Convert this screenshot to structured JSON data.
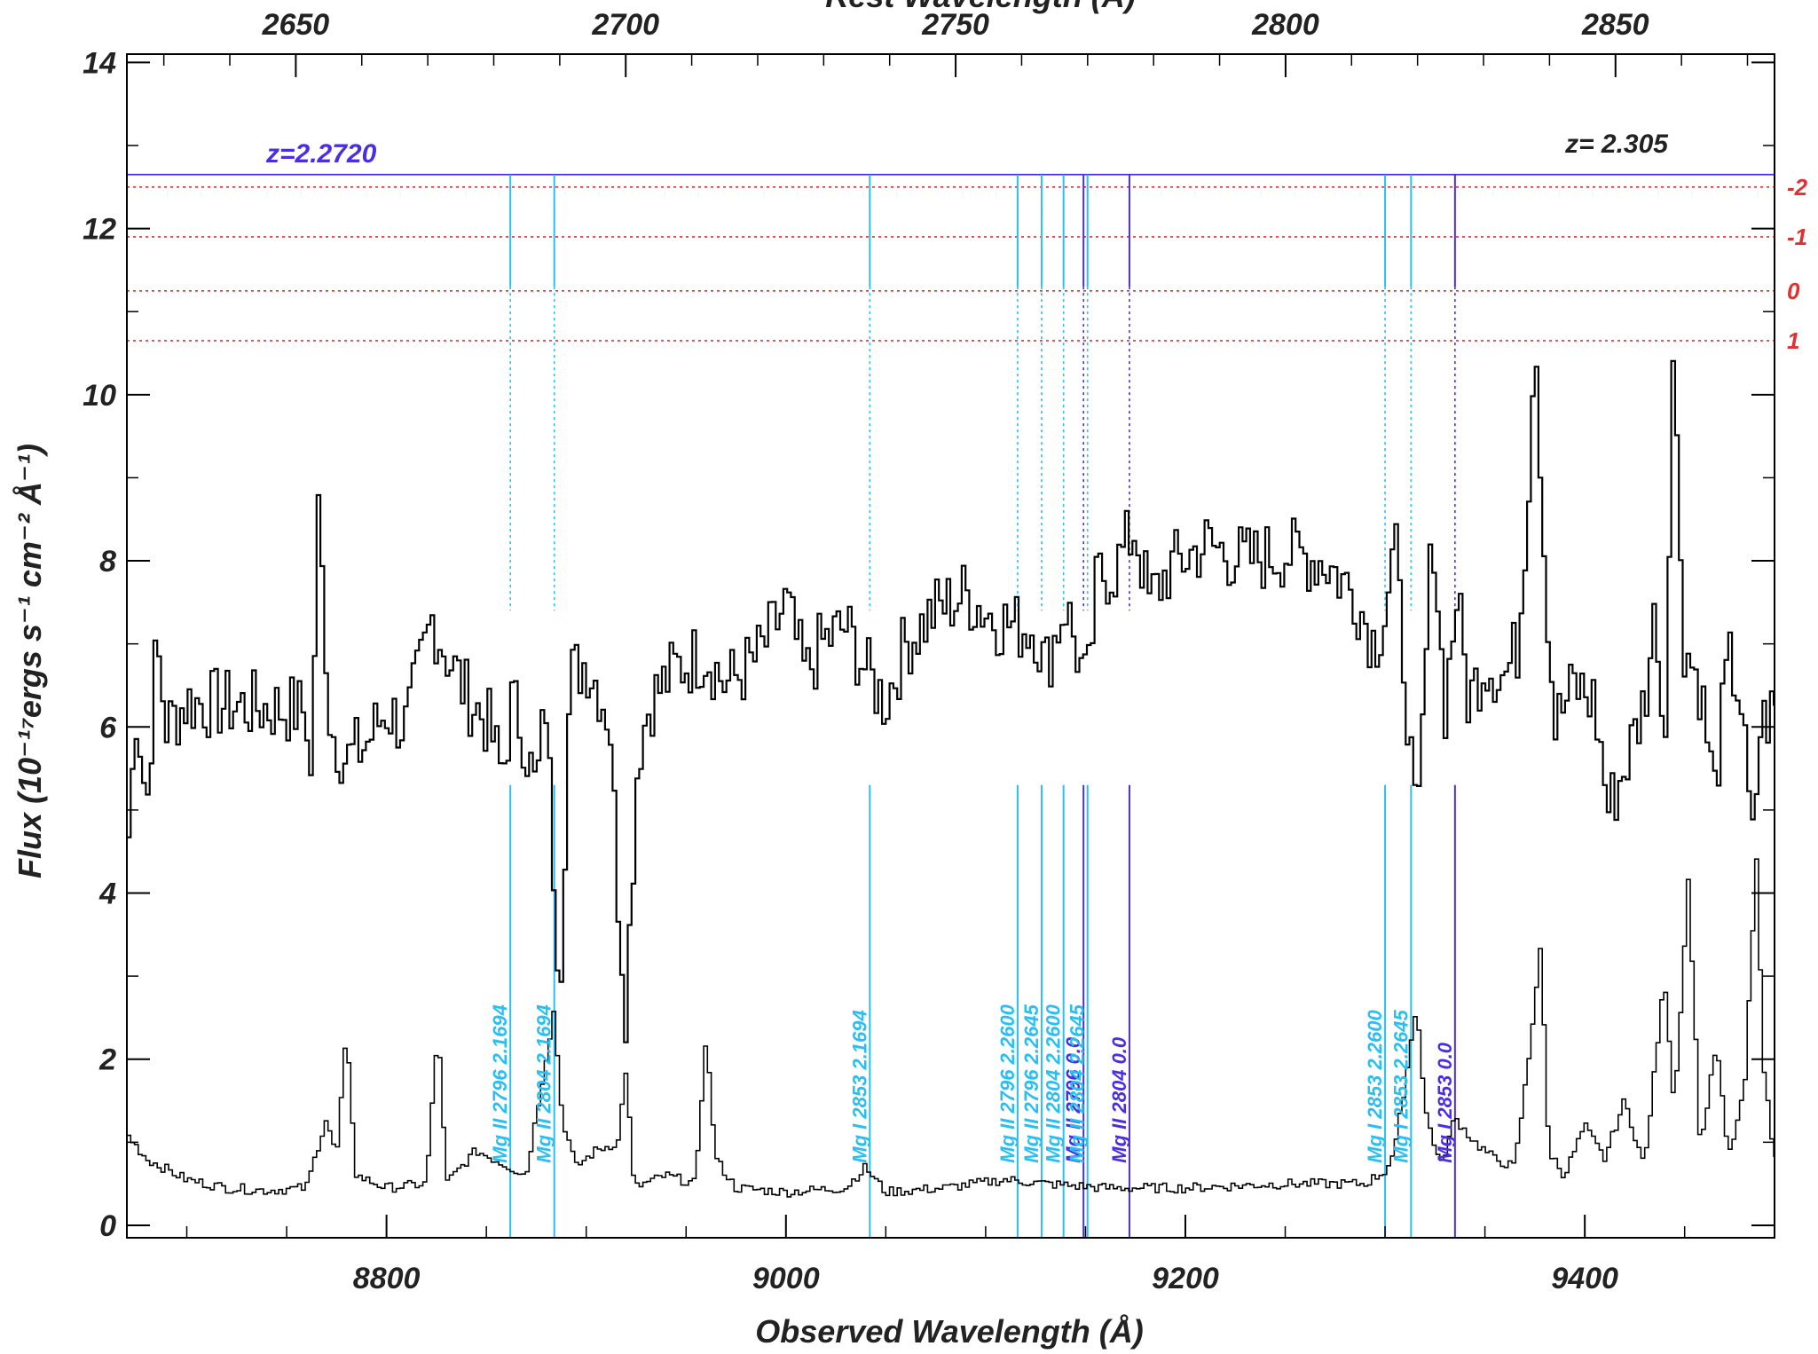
{
  "chart_data": {
    "type": "line",
    "xlabel": "Observed Wavelength (Å)",
    "x2label": "Rest Wavelength (Å)",
    "ylabel": "Flux (10⁻¹⁷ergs s⁻¹ cm⁻² Å⁻¹)",
    "xlim": [
      8670,
      9495
    ],
    "ylim": [
      -0.15,
      14.1
    ],
    "x2lim": [
      2624.4,
      2874.1
    ],
    "xticks": [
      8800,
      9000,
      9200,
      9400
    ],
    "x2ticks": [
      2650,
      2700,
      2750,
      2800,
      2850
    ],
    "yticks": [
      0,
      2,
      4,
      6,
      8,
      10,
      12,
      14
    ],
    "z_quasar_label": "z= 2.305",
    "z_system_label": "z=2.2720",
    "z_system_y": 12.65,
    "sigma_levels": [
      {
        "label": "-2",
        "y": 12.5
      },
      {
        "label": "-1",
        "y": 11.9
      },
      {
        "label": "0",
        "y": 11.25
      },
      {
        "label": "1",
        "y": 10.65
      }
    ],
    "colors": {
      "spectrum": "#000000",
      "cyan": "#29bff2",
      "violet": "#4a2ee6",
      "sigma": "#e23030"
    },
    "absorption_lines": [
      {
        "label": "Mg II 2796 2.1694",
        "x": 8862,
        "color": "cyan"
      },
      {
        "label": "Mg II 2804 2.1694",
        "x": 8884,
        "color": "cyan"
      },
      {
        "label": "Mg I 2853 2.1694",
        "x": 9042,
        "color": "cyan"
      },
      {
        "label": "Mg II 2796 2.2600",
        "x": 9116,
        "color": "cyan"
      },
      {
        "label": "Mg II 2796 2.2645",
        "x": 9128,
        "color": "cyan"
      },
      {
        "label": "Mg II 2804 2.2600",
        "x": 9139,
        "color": "cyan"
      },
      {
        "label": "Mg II 2796 0.0",
        "x": 9149,
        "color": "violet"
      },
      {
        "label": "Mg II 2804 2.2645",
        "x": 9151,
        "color": "cyan"
      },
      {
        "label": "Mg II 2804 0.0",
        "x": 9172,
        "color": "violet"
      },
      {
        "label": "Mg I 2853 2.2600",
        "x": 9300,
        "color": "cyan"
      },
      {
        "label": "Mg I 2853 2.2645",
        "x": 9313,
        "color": "cyan"
      },
      {
        "label": "Mg I 2853 0.0",
        "x": 9335,
        "color": "violet"
      }
    ],
    "flux_knots": [
      [
        8670,
        4.3
      ],
      [
        8675,
        6.3
      ],
      [
        8680,
        5.0
      ],
      [
        8685,
        7.0
      ],
      [
        8690,
        6.0
      ],
      [
        8700,
        6.3
      ],
      [
        8760,
        6.2
      ],
      [
        8762,
        5.2
      ],
      [
        8766,
        8.6
      ],
      [
        8772,
        6.0
      ],
      [
        8780,
        5.6
      ],
      [
        8790,
        5.8
      ],
      [
        8800,
        6.2
      ],
      [
        8810,
        6.0
      ],
      [
        8823,
        7.3
      ],
      [
        8830,
        6.9
      ],
      [
        8840,
        6.4
      ],
      [
        8852,
        6.0
      ],
      [
        8858,
        5.4
      ],
      [
        8863,
        6.3
      ],
      [
        8868,
        6.0
      ],
      [
        8875,
        5.2
      ],
      [
        8880,
        6.3
      ],
      [
        8884,
        4.2
      ],
      [
        8887,
        2.9
      ],
      [
        8892,
        6.6
      ],
      [
        8900,
        6.8
      ],
      [
        8906,
        6.5
      ],
      [
        8912,
        6.1
      ],
      [
        8916,
        4.0
      ],
      [
        8920,
        2.6
      ],
      [
        8926,
        5.7
      ],
      [
        8932,
        6.3
      ],
      [
        8945,
        6.7
      ],
      [
        8960,
        6.9
      ],
      [
        8970,
        6.5
      ],
      [
        8985,
        6.8
      ],
      [
        8995,
        7.2
      ],
      [
        9000,
        7.5
      ],
      [
        9010,
        6.6
      ],
      [
        9018,
        7.0
      ],
      [
        9030,
        7.2
      ],
      [
        9042,
        6.6
      ],
      [
        9050,
        6.3
      ],
      [
        9060,
        7.0
      ],
      [
        9075,
        7.4
      ],
      [
        9090,
        7.6
      ],
      [
        9105,
        7.3
      ],
      [
        9116,
        7.2
      ],
      [
        9125,
        7.2
      ],
      [
        9130,
        6.7
      ],
      [
        9140,
        7.5
      ],
      [
        9147,
        6.8
      ],
      [
        9151,
        6.4
      ],
      [
        9156,
        7.8
      ],
      [
        9165,
        7.9
      ],
      [
        9175,
        8.4
      ],
      [
        9182,
        7.5
      ],
      [
        9192,
        7.9
      ],
      [
        9210,
        8.2
      ],
      [
        9230,
        8.0
      ],
      [
        9250,
        8.1
      ],
      [
        9270,
        8.0
      ],
      [
        9285,
        7.6
      ],
      [
        9295,
        7.0
      ],
      [
        9300,
        7.4
      ],
      [
        9305,
        8.2
      ],
      [
        9312,
        6.0
      ],
      [
        9316,
        4.5
      ],
      [
        9320,
        6.5
      ],
      [
        9324,
        8.5
      ],
      [
        9330,
        6.2
      ],
      [
        9336,
        7.6
      ],
      [
        9342,
        6.3
      ],
      [
        9350,
        6.8
      ],
      [
        9360,
        6.6
      ],
      [
        9367,
        7.0
      ],
      [
        9372,
        9.0
      ],
      [
        9375,
        11.0
      ],
      [
        9380,
        8.0
      ],
      [
        9385,
        6.0
      ],
      [
        9395,
        6.5
      ],
      [
        9405,
        6.3
      ],
      [
        9412,
        5.0
      ],
      [
        9420,
        5.5
      ],
      [
        9430,
        6.3
      ],
      [
        9436,
        7.5
      ],
      [
        9440,
        5.5
      ],
      [
        9444,
        10.6
      ],
      [
        9450,
        7.0
      ],
      [
        9458,
        6.5
      ],
      [
        9465,
        5.2
      ],
      [
        9472,
        6.8
      ],
      [
        9478,
        6.4
      ],
      [
        9484,
        4.5
      ],
      [
        9488,
        6.0
      ],
      [
        9495,
        6.2
      ]
    ],
    "error_knots": [
      [
        8670,
        1.1
      ],
      [
        8680,
        0.8
      ],
      [
        8700,
        0.55
      ],
      [
        8720,
        0.45
      ],
      [
        8740,
        0.42
      ],
      [
        8760,
        0.45
      ],
      [
        8770,
        1.3
      ],
      [
        8775,
        0.8
      ],
      [
        8780,
        2.3
      ],
      [
        8785,
        0.6
      ],
      [
        8800,
        0.45
      ],
      [
        8820,
        0.5
      ],
      [
        8826,
        2.4
      ],
      [
        8830,
        0.5
      ],
      [
        8845,
        0.9
      ],
      [
        8862,
        0.7
      ],
      [
        8870,
        0.6
      ],
      [
        8884,
        2.6
      ],
      [
        8888,
        1.3
      ],
      [
        8895,
        0.7
      ],
      [
        8905,
        0.9
      ],
      [
        8916,
        1.0
      ],
      [
        8920,
        1.9
      ],
      [
        8924,
        0.45
      ],
      [
        8940,
        0.6
      ],
      [
        8955,
        0.5
      ],
      [
        8960,
        2.3
      ],
      [
        8965,
        0.8
      ],
      [
        8975,
        0.45
      ],
      [
        9000,
        0.4
      ],
      [
        9030,
        0.45
      ],
      [
        9040,
        0.7
      ],
      [
        9050,
        0.4
      ],
      [
        9080,
        0.45
      ],
      [
        9110,
        0.55
      ],
      [
        9130,
        0.5
      ],
      [
        9160,
        0.45
      ],
      [
        9200,
        0.45
      ],
      [
        9250,
        0.5
      ],
      [
        9290,
        0.5
      ],
      [
        9300,
        0.65
      ],
      [
        9305,
        0.9
      ],
      [
        9310,
        1.7
      ],
      [
        9316,
        2.7
      ],
      [
        9320,
        1.4
      ],
      [
        9328,
        0.7
      ],
      [
        9335,
        1.3
      ],
      [
        9345,
        1.0
      ],
      [
        9355,
        0.8
      ],
      [
        9365,
        0.7
      ],
      [
        9372,
        2.0
      ],
      [
        9378,
        3.4
      ],
      [
        9382,
        0.9
      ],
      [
        9390,
        0.6
      ],
      [
        9400,
        1.2
      ],
      [
        9410,
        0.8
      ],
      [
        9420,
        1.5
      ],
      [
        9430,
        0.7
      ],
      [
        9440,
        3.0
      ],
      [
        9445,
        1.4
      ],
      [
        9452,
        4.2
      ],
      [
        9458,
        0.9
      ],
      [
        9466,
        2.2
      ],
      [
        9472,
        0.8
      ],
      [
        9480,
        1.6
      ],
      [
        9486,
        4.4
      ],
      [
        9490,
        1.8
      ],
      [
        9495,
        0.8
      ]
    ]
  }
}
